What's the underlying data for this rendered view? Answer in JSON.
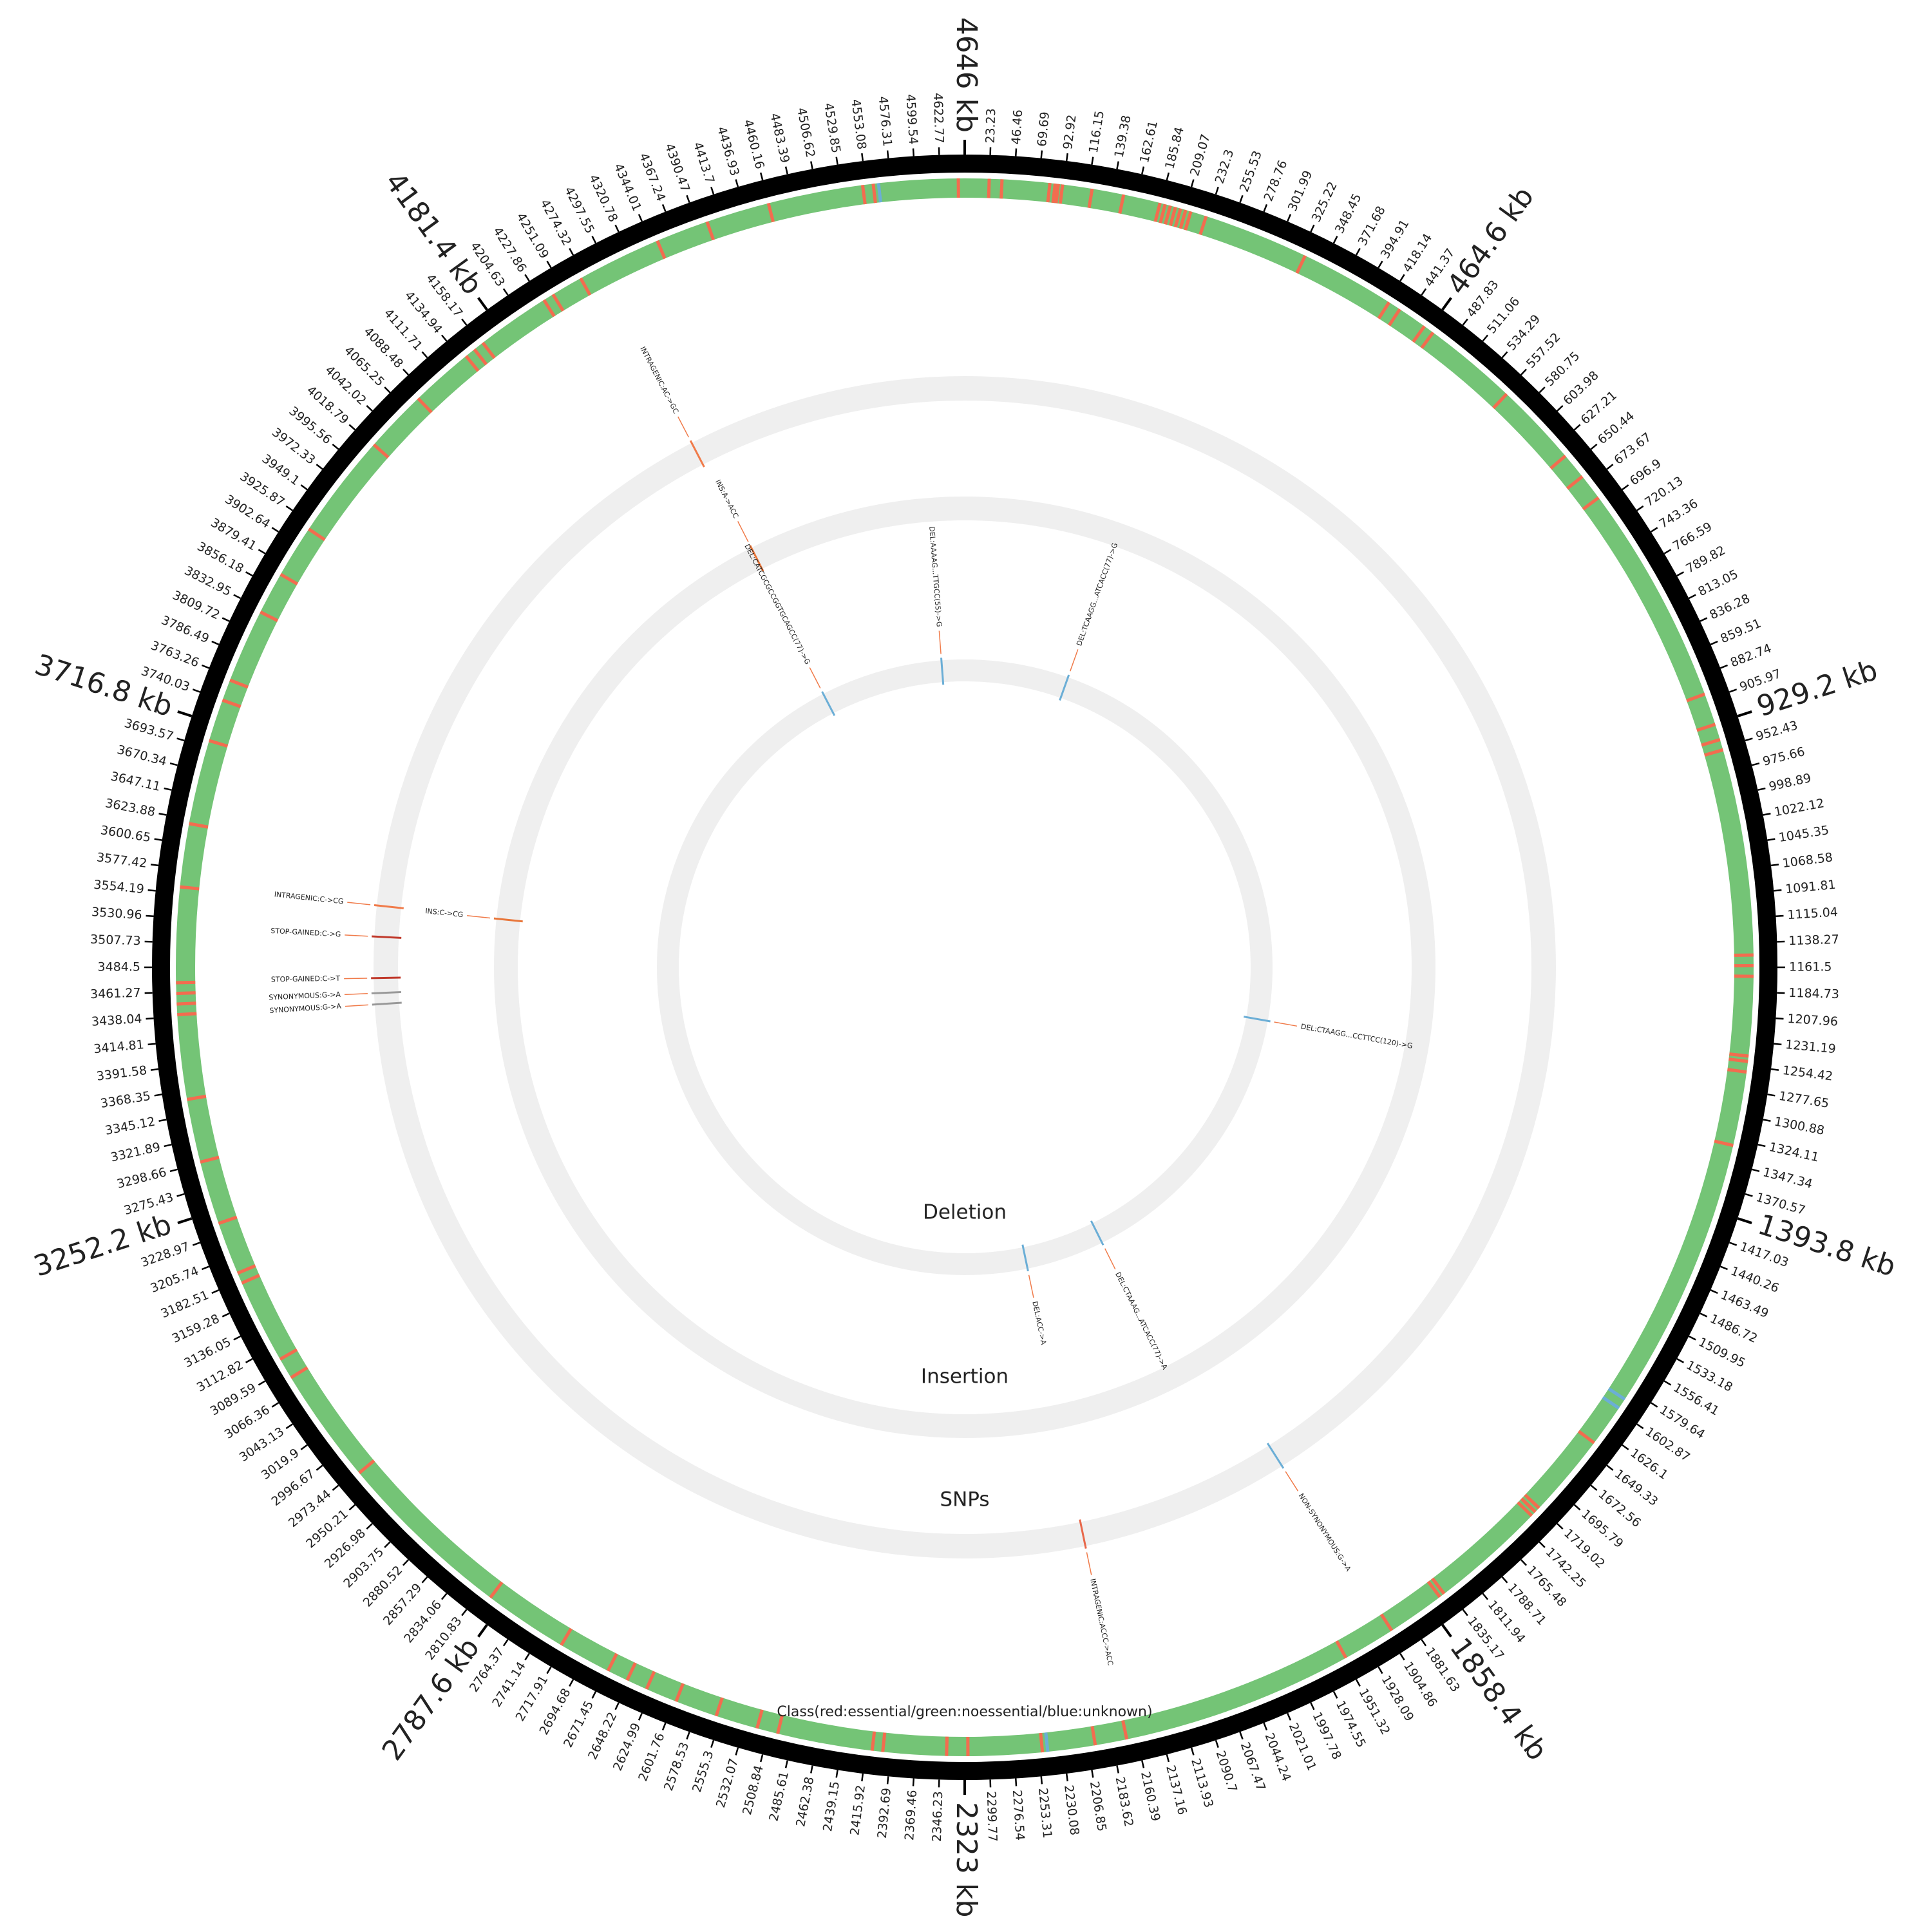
{
  "chart_data": {
    "type": "circos",
    "xlim": [
      0,
      4646
    ],
    "ticks": [
      23.23,
      46.46,
      69.69,
      92.92,
      116.15,
      139.38,
      162.61,
      185.84,
      209.07,
      232.3,
      255.53,
      278.76,
      301.99,
      325.22,
      348.45,
      371.68,
      394.91,
      418.14,
      441.37,
      {
        "value": 464.6,
        "label": "464.6 kb"
      },
      487.83,
      511.06,
      534.29,
      557.52,
      580.75,
      603.98,
      627.21,
      650.44,
      673.67,
      696.9,
      720.13,
      743.36,
      766.59,
      789.82,
      813.05,
      836.28,
      859.51,
      882.74,
      905.97,
      {
        "value": 929.2,
        "label": "929.2 kb"
      },
      952.43,
      975.66,
      998.89,
      1022.12,
      1045.35,
      1068.58,
      1091.81,
      1115.04,
      1138.27,
      1161.5,
      1184.73,
      1207.96,
      1231.19,
      1254.42,
      1277.65,
      1300.88,
      1324.11,
      1347.34,
      1370.57,
      {
        "value": 1393.8,
        "label": "1393.8 kb"
      },
      1417.03,
      1440.26,
      1463.49,
      1486.72,
      1509.95,
      1533.18,
      1556.41,
      1579.64,
      1602.87,
      1626.1,
      1649.33,
      1672.56,
      1695.79,
      1719.02,
      1742.25,
      1765.48,
      1788.71,
      1811.94,
      1835.17,
      {
        "value": 1858.4,
        "label": "1858.4 kb"
      },
      1881.63,
      1904.86,
      1928.09,
      1951.32,
      1974.55,
      1997.78,
      2021.01,
      2044.24,
      2067.47,
      2090.7,
      2113.93,
      2137.16,
      2160.39,
      2183.62,
      2206.85,
      2230.08,
      2253.31,
      2276.54,
      2299.77,
      {
        "value": 2323,
        "label": "2323 kb"
      },
      2346.23,
      2369.46,
      2392.69,
      2415.92,
      2439.15,
      2462.38,
      2485.61,
      2508.84,
      2532.07,
      2555.3,
      2578.53,
      2601.76,
      2624.99,
      2648.22,
      2671.45,
      2694.68,
      2717.91,
      2741.14,
      2764.37,
      {
        "value": 2787.6,
        "label": "2787.6 kb"
      },
      2810.83,
      2834.06,
      2857.29,
      2880.52,
      2903.75,
      2926.98,
      2950.21,
      2973.44,
      2996.67,
      3019.9,
      3043.13,
      3066.36,
      3089.59,
      3112.82,
      3136.05,
      3159.28,
      3182.51,
      3205.74,
      3228.97,
      {
        "value": 3252.2,
        "label": "3252.2 kb"
      },
      3275.43,
      3298.66,
      3321.89,
      3345.12,
      3368.35,
      3391.58,
      3414.81,
      3438.04,
      3461.27,
      3484.5,
      3507.73,
      3530.96,
      3554.19,
      3577.42,
      3600.65,
      3623.88,
      3647.11,
      3670.34,
      3693.57,
      {
        "value": 3716.8,
        "label": "3716.8 kb"
      },
      3740.03,
      3763.26,
      3786.49,
      3809.72,
      3832.95,
      3856.18,
      3879.41,
      3902.64,
      3925.87,
      3949.1,
      3972.33,
      3995.56,
      4018.79,
      4042.02,
      4065.25,
      4088.48,
      4111.71,
      4134.94,
      4158.17,
      {
        "value": 4181.4,
        "label": "4181.4 kb"
      },
      4204.63,
      4227.86,
      4251.09,
      4274.32,
      4297.55,
      4320.78,
      4344.01,
      4367.24,
      4390.47,
      4413.7,
      4436.93,
      4460.16,
      4483.39,
      4506.62,
      4529.85,
      4553.08,
      4576.31,
      4599.54,
      4622.77,
      {
        "value": 4646,
        "label": "4646 kb"
      }
    ],
    "class_track": {
      "title": "Class(red:essential/green:noessential/blue:unknown)",
      "colors": {
        "essential": "#f36c4f",
        "noessential": "#74c476",
        "unknown": "#6baed6"
      },
      "essential": [
        23,
        35,
        80,
        85,
        88,
        92,
        120,
        150,
        185,
        190,
        195,
        200,
        205,
        210,
        215,
        230,
        330,
        420,
        432,
        460,
        470,
        560,
        640,
        665,
        690,
        900,
        930,
        945,
        955,
        1150,
        1160,
        1170,
        1245,
        1250,
        1260,
        1330,
        1640,
        1720,
        1725,
        1730,
        1840,
        1845,
        1900,
        1950,
        2170,
        2200,
        2250,
        2320,
        2340,
        2400,
        2410,
        2500,
        2520,
        2560,
        2600,
        2630,
        2650,
        2670,
        2720,
        2800,
        2970,
        3080,
        3100,
        3180,
        3190,
        3240,
        3300,
        3360,
        3440,
        3450,
        3460,
        3470,
        3560,
        3620,
        3700,
        3740,
        3760,
        3830,
        3870,
        3920,
        4020,
        4080,
        4140,
        4150,
        4160,
        4230,
        4240,
        4270,
        4350,
        4400,
        4460,
        4550,
        4560,
        4640
      ],
      "unknown": [
        1590,
        1600,
        2245,
        4565
      ]
    },
    "tracks": [
      {
        "name": "SNPs",
        "variants": [
          {
            "position": 4291,
            "label": "INTRAGENIC:AC->GC",
            "color": "#f07b4a"
          },
          {
            "position": 3562,
            "label": "INTRAGENIC:C->CG",
            "color": "#f07b4a"
          },
          {
            "position": 3523,
            "label": "STOP-GAINED:C->G",
            "color": "#c0392b"
          },
          {
            "position": 3471,
            "label": "STOP-GAINED:C->T",
            "color": "#c0392b"
          },
          {
            "position": 3452,
            "label": "SYNONYMOUS:G->A",
            "color": "#999999"
          },
          {
            "position": 3438,
            "label": "SYNONYMOUS:G->A",
            "color": "#999999"
          },
          {
            "position": 1904,
            "label": "NON-SYNONYMOUS:G->A",
            "color": "#6baed6"
          },
          {
            "position": 2171,
            "label": "INTRAGENIC:ACCC->ACC",
            "color": "#e8684a"
          }
        ]
      },
      {
        "name": "Insertion",
        "variants": [
          {
            "position": 4298,
            "label": "INS:A->ACC",
            "color": "#e8763a"
          },
          {
            "position": 3561,
            "label": "INS:C->CG",
            "color": "#e8763a"
          }
        ]
      },
      {
        "name": "Deletion",
        "variants": [
          {
            "position": 4293,
            "label": "DEL:CATCGCGCCGGTGCAGCC(77)->G",
            "color": "#6baed6"
          },
          {
            "position": 4590,
            "label": "DEL:AAAAG...TTGCC(55)->G",
            "color": "#6baed6"
          },
          {
            "position": 253,
            "label": "DEL:TCAAGG...ATCACC(77)->G",
            "color": "#6baed6"
          },
          {
            "position": 1291,
            "label": "DEL:CTAAGG...CCTTCC(120)->G",
            "color": "#6baed6"
          },
          {
            "position": 1981,
            "label": "DEL:CTAAAG...ATCACC(77)->A",
            "color": "#6baed6"
          },
          {
            "position": 2171,
            "label": "DEL:ACC->A",
            "color": "#6baed6"
          }
        ]
      }
    ]
  }
}
